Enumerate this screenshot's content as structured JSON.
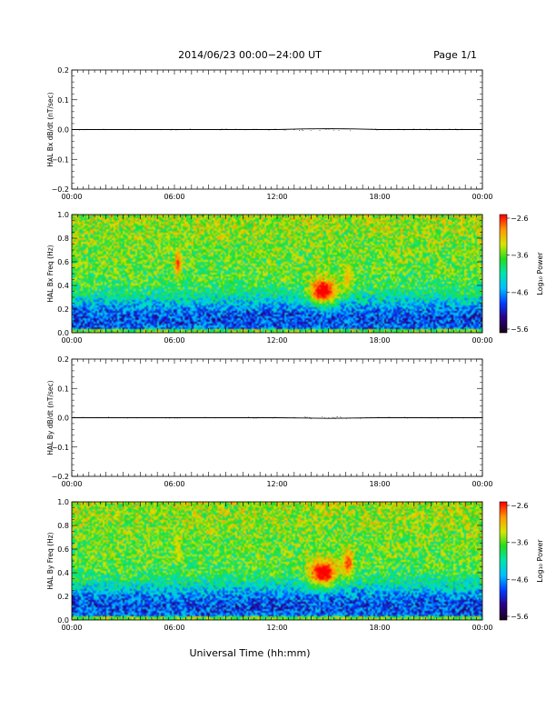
{
  "header": {
    "title": "2014/06/23  00:00−24:00 UT",
    "page": "Page 1/1"
  },
  "colors": {
    "trace": "#000000",
    "colormap": [
      "#1a001a",
      "#2a0088",
      "#0040ff",
      "#00bfff",
      "#00e5b0",
      "#22dd22",
      "#d8e600",
      "#ff9900",
      "#ff0000"
    ]
  },
  "chart_data": [
    {
      "type": "line",
      "panel": "top",
      "ylabel": "HAL Bx dB/dt (nT/sec)",
      "x_range": [
        0,
        24
      ],
      "x_ticks": [
        "00:00",
        "06:00",
        "12:00",
        "18:00",
        "00:00"
      ],
      "ylim": [
        -0.2,
        0.2
      ],
      "y_ticks": [
        "0.2",
        "0.1",
        "0.0",
        "−0.1",
        "−0.2"
      ],
      "series": [
        {
          "x": [
            0,
            6,
            12,
            13.5,
            15,
            16.5,
            18,
            24
          ],
          "y": [
            0.0,
            0.0,
            0.0,
            0.002,
            0.003,
            0.002,
            0.0,
            0.0
          ]
        }
      ]
    },
    {
      "type": "heatmap",
      "panel": "top",
      "ylabel": "HAL Bx Freq (Hz)",
      "x_range": [
        0,
        24
      ],
      "x_ticks": [
        "00:00",
        "06:00",
        "12:00",
        "18:00",
        "00:00"
      ],
      "ylim": [
        0.0,
        1.0
      ],
      "y_ticks": [
        "1.0",
        "0.8",
        "0.6",
        "0.4",
        "0.2",
        "0.0"
      ],
      "colorbar": {
        "label": "Log₁₀ Power",
        "range": [
          -5.6,
          -2.6
        ],
        "ticks": [
          "−2.6",
          "−3.6",
          "−4.6",
          "−5.6"
        ]
      },
      "features": [
        {
          "t_start": 6.0,
          "t_end": 6.4,
          "f_center": 0.59,
          "peak_log_power": -3.0
        },
        {
          "t_start": 13.8,
          "t_end": 15.6,
          "f_center": 0.35,
          "peak_log_power": -2.6
        },
        {
          "t_start": 15.8,
          "t_end": 16.4,
          "f_center": 0.45,
          "peak_log_power": -3.4
        }
      ]
    },
    {
      "type": "line",
      "panel": "bottom",
      "ylabel": "HAL By dB/dt (nT/sec)",
      "x_range": [
        0,
        24
      ],
      "x_ticks": [
        "00:00",
        "06:00",
        "12:00",
        "18:00",
        "00:00"
      ],
      "ylim": [
        -0.2,
        0.2
      ],
      "y_ticks": [
        "0.2",
        "0.1",
        "0.0",
        "−0.1",
        "−0.2"
      ],
      "series": [
        {
          "x": [
            0,
            6,
            12,
            13.5,
            15,
            16.5,
            18,
            24
          ],
          "y": [
            0.0,
            0.0,
            0.0,
            -0.001,
            -0.002,
            -0.001,
            0.0,
            0.0
          ]
        }
      ]
    },
    {
      "type": "heatmap",
      "panel": "bottom",
      "ylabel": "HAL By Freq (Hz)",
      "x_range": [
        0,
        24
      ],
      "x_ticks": [
        "00:00",
        "06:00",
        "12:00",
        "18:00",
        "00:00"
      ],
      "ylim": [
        0.0,
        1.0
      ],
      "y_ticks": [
        "1.0",
        "0.8",
        "0.6",
        "0.4",
        "0.2",
        "0.0"
      ],
      "colorbar": {
        "label": "Log₁₀ Power",
        "range": [
          -5.6,
          -2.6
        ],
        "ticks": [
          "−2.6",
          "−3.6",
          "−4.6",
          "−5.6"
        ]
      },
      "features": [
        {
          "t_start": 6.0,
          "t_end": 6.4,
          "f_center": 0.6,
          "peak_log_power": -3.6
        },
        {
          "t_start": 13.8,
          "t_end": 15.6,
          "f_center": 0.4,
          "peak_log_power": -2.6
        },
        {
          "t_start": 15.8,
          "t_end": 16.5,
          "f_center": 0.48,
          "peak_log_power": -3.0
        }
      ]
    }
  ],
  "x_axis_title": "Universal Time (hh:mm)"
}
